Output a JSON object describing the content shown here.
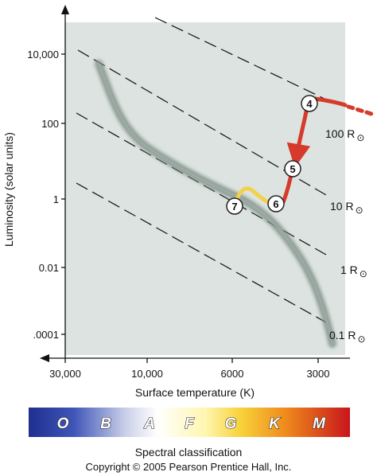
{
  "diagram": {
    "y_axis": {
      "label": "Luminosity (solar units)",
      "ticks": [
        "10,000",
        "100",
        "1",
        "0.01",
        ".0001"
      ]
    },
    "x_axis": {
      "label": "Surface temperature (K)",
      "ticks": [
        "30,000",
        "10,000",
        "6000",
        "3000"
      ]
    },
    "radius_lines": [
      {
        "label": "100 R",
        "symbol": "⊙"
      },
      {
        "label": "10 R",
        "symbol": "⊙"
      },
      {
        "label": "1 R",
        "symbol": "⊙"
      },
      {
        "label": "0.1 R",
        "symbol": "⊙"
      }
    ],
    "evolution_stages": [
      "4",
      "5",
      "6",
      "7"
    ],
    "spectral_classes": [
      "O",
      "B",
      "A",
      "F",
      "G",
      "K",
      "M"
    ],
    "spectral_caption": "Spectral classification",
    "copyright": "Copyright © 2005 Pearson Prentice Hall, Inc.",
    "colors": {
      "plot_background": "#dde3e0",
      "main_sequence": "#7f8f88",
      "track_red": "#d63a2a",
      "track_yellow": "#f2d24a"
    }
  }
}
